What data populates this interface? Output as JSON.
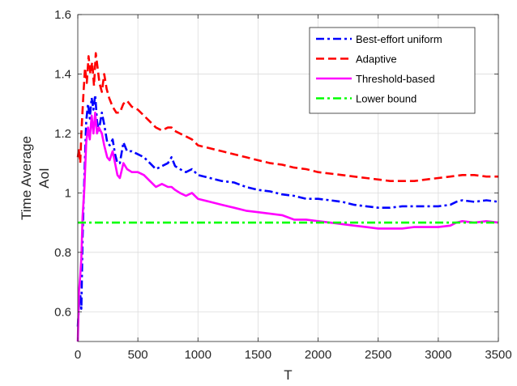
{
  "chart_data": {
    "type": "line",
    "title": "",
    "xlabel": "T",
    "ylabel_lines": [
      "Time Average",
      "AoI"
    ],
    "xlim": [
      0,
      3500
    ],
    "ylim": [
      0.5,
      1.6
    ],
    "xticks": [
      0,
      500,
      1000,
      1500,
      2000,
      2500,
      3000,
      3500
    ],
    "yticks": [
      0.6,
      0.8,
      1,
      1.2,
      1.4,
      1.6
    ],
    "xtick_labels": [
      "0",
      "500",
      "1000",
      "1500",
      "2000",
      "2500",
      "3000",
      "3500"
    ],
    "ytick_labels": [
      "0.6",
      "0.8",
      "1",
      "1.2",
      "1.4",
      "1.6"
    ],
    "grid": true,
    "legend_position": "top-right",
    "series": [
      {
        "name": "Best-effort uniform",
        "color": "#0000ff",
        "dash": "dashdot",
        "points": [
          [
            0,
            0.55
          ],
          [
            10,
            0.62
          ],
          [
            20,
            0.66
          ],
          [
            30,
            0.61
          ],
          [
            40,
            0.85
          ],
          [
            55,
            1.06
          ],
          [
            70,
            1.24
          ],
          [
            85,
            1.3
          ],
          [
            100,
            1.25
          ],
          [
            115,
            1.32
          ],
          [
            130,
            1.28
          ],
          [
            145,
            1.33
          ],
          [
            160,
            1.24
          ],
          [
            175,
            1.21
          ],
          [
            200,
            1.27
          ],
          [
            220,
            1.23
          ],
          [
            245,
            1.17
          ],
          [
            265,
            1.16
          ],
          [
            290,
            1.18
          ],
          [
            310,
            1.13
          ],
          [
            330,
            1.1
          ],
          [
            350,
            1.1
          ],
          [
            380,
            1.17
          ],
          [
            410,
            1.14
          ],
          [
            450,
            1.14
          ],
          [
            500,
            1.13
          ],
          [
            550,
            1.12
          ],
          [
            600,
            1.1
          ],
          [
            650,
            1.08
          ],
          [
            700,
            1.09
          ],
          [
            750,
            1.1
          ],
          [
            780,
            1.12
          ],
          [
            810,
            1.09
          ],
          [
            850,
            1.08
          ],
          [
            900,
            1.07
          ],
          [
            950,
            1.08
          ],
          [
            1000,
            1.06
          ],
          [
            1100,
            1.05
          ],
          [
            1200,
            1.04
          ],
          [
            1300,
            1.035
          ],
          [
            1400,
            1.02
          ],
          [
            1500,
            1.01
          ],
          [
            1600,
            1.005
          ],
          [
            1700,
            0.995
          ],
          [
            1800,
            0.99
          ],
          [
            1900,
            0.98
          ],
          [
            2000,
            0.98
          ],
          [
            2100,
            0.975
          ],
          [
            2200,
            0.97
          ],
          [
            2300,
            0.96
          ],
          [
            2400,
            0.955
          ],
          [
            2500,
            0.95
          ],
          [
            2600,
            0.95
          ],
          [
            2700,
            0.955
          ],
          [
            2800,
            0.955
          ],
          [
            2900,
            0.955
          ],
          [
            3000,
            0.955
          ],
          [
            3100,
            0.96
          ],
          [
            3150,
            0.97
          ],
          [
            3200,
            0.975
          ],
          [
            3300,
            0.97
          ],
          [
            3400,
            0.975
          ],
          [
            3500,
            0.97
          ]
        ]
      },
      {
        "name": "Adaptive",
        "color": "#ff0000",
        "dash": "dashed",
        "points": [
          [
            0,
            1.12
          ],
          [
            10,
            1.15
          ],
          [
            20,
            1.1
          ],
          [
            30,
            1.2
          ],
          [
            45,
            1.32
          ],
          [
            60,
            1.42
          ],
          [
            75,
            1.37
          ],
          [
            90,
            1.46
          ],
          [
            105,
            1.4
          ],
          [
            120,
            1.44
          ],
          [
            135,
            1.36
          ],
          [
            150,
            1.47
          ],
          [
            165,
            1.42
          ],
          [
            180,
            1.37
          ],
          [
            200,
            1.34
          ],
          [
            220,
            1.4
          ],
          [
            240,
            1.35
          ],
          [
            260,
            1.32
          ],
          [
            290,
            1.29
          ],
          [
            320,
            1.27
          ],
          [
            350,
            1.27
          ],
          [
            380,
            1.3
          ],
          [
            410,
            1.31
          ],
          [
            450,
            1.29
          ],
          [
            500,
            1.28
          ],
          [
            550,
            1.26
          ],
          [
            600,
            1.24
          ],
          [
            650,
            1.22
          ],
          [
            700,
            1.21
          ],
          [
            750,
            1.22
          ],
          [
            780,
            1.22
          ],
          [
            800,
            1.21
          ],
          [
            850,
            1.2
          ],
          [
            900,
            1.19
          ],
          [
            950,
            1.18
          ],
          [
            1000,
            1.16
          ],
          [
            1100,
            1.15
          ],
          [
            1200,
            1.14
          ],
          [
            1300,
            1.13
          ],
          [
            1400,
            1.12
          ],
          [
            1500,
            1.11
          ],
          [
            1600,
            1.1
          ],
          [
            1700,
            1.095
          ],
          [
            1800,
            1.085
          ],
          [
            1900,
            1.08
          ],
          [
            2000,
            1.07
          ],
          [
            2100,
            1.065
          ],
          [
            2200,
            1.06
          ],
          [
            2300,
            1.055
          ],
          [
            2400,
            1.05
          ],
          [
            2500,
            1.045
          ],
          [
            2600,
            1.04
          ],
          [
            2700,
            1.04
          ],
          [
            2800,
            1.04
          ],
          [
            2900,
            1.045
          ],
          [
            3000,
            1.05
          ],
          [
            3100,
            1.055
          ],
          [
            3200,
            1.06
          ],
          [
            3300,
            1.06
          ],
          [
            3400,
            1.055
          ],
          [
            3500,
            1.055
          ]
        ]
      },
      {
        "name": "Threshold-based",
        "color": "#ff00ff",
        "dash": "solid",
        "points": [
          [
            0,
            0.5
          ],
          [
            10,
            0.67
          ],
          [
            20,
            0.72
          ],
          [
            30,
            0.78
          ],
          [
            40,
            0.92
          ],
          [
            55,
            1.02
          ],
          [
            70,
            1.17
          ],
          [
            85,
            1.22
          ],
          [
            100,
            1.18
          ],
          [
            115,
            1.26
          ],
          [
            130,
            1.2
          ],
          [
            145,
            1.27
          ],
          [
            160,
            1.2
          ],
          [
            175,
            1.22
          ],
          [
            200,
            1.2
          ],
          [
            220,
            1.16
          ],
          [
            245,
            1.12
          ],
          [
            265,
            1.11
          ],
          [
            290,
            1.14
          ],
          [
            310,
            1.1
          ],
          [
            330,
            1.06
          ],
          [
            350,
            1.05
          ],
          [
            380,
            1.1
          ],
          [
            410,
            1.08
          ],
          [
            450,
            1.07
          ],
          [
            500,
            1.07
          ],
          [
            550,
            1.06
          ],
          [
            600,
            1.04
          ],
          [
            650,
            1.02
          ],
          [
            700,
            1.03
          ],
          [
            750,
            1.02
          ],
          [
            780,
            1.02
          ],
          [
            810,
            1.01
          ],
          [
            850,
            1.0
          ],
          [
            900,
            0.99
          ],
          [
            950,
            1.0
          ],
          [
            1000,
            0.98
          ],
          [
            1100,
            0.97
          ],
          [
            1200,
            0.96
          ],
          [
            1300,
            0.95
          ],
          [
            1400,
            0.94
          ],
          [
            1500,
            0.935
          ],
          [
            1600,
            0.93
          ],
          [
            1700,
            0.925
          ],
          [
            1800,
            0.91
          ],
          [
            1900,
            0.91
          ],
          [
            2000,
            0.905
          ],
          [
            2100,
            0.9
          ],
          [
            2200,
            0.895
          ],
          [
            2300,
            0.89
          ],
          [
            2400,
            0.885
          ],
          [
            2500,
            0.88
          ],
          [
            2600,
            0.88
          ],
          [
            2700,
            0.88
          ],
          [
            2800,
            0.885
          ],
          [
            2900,
            0.885
          ],
          [
            3000,
            0.885
          ],
          [
            3100,
            0.89
          ],
          [
            3150,
            0.9
          ],
          [
            3200,
            0.905
          ],
          [
            3300,
            0.9
          ],
          [
            3400,
            0.905
          ],
          [
            3500,
            0.9
          ]
        ]
      },
      {
        "name": "Lower bound",
        "color": "#00ff00",
        "dash": "dashdot",
        "points": [
          [
            0,
            0.9
          ],
          [
            3500,
            0.9
          ]
        ]
      }
    ]
  }
}
